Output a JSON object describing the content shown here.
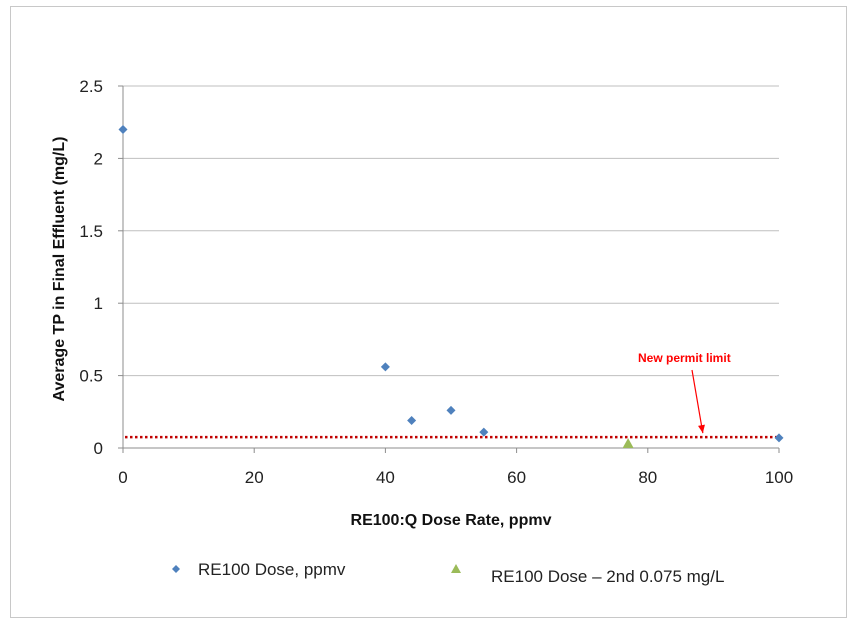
{
  "chart_data": {
    "type": "scatter",
    "title": "",
    "xlabel": "RE100:Q Dose Rate, ppmv",
    "ylabel": "Average TP in Final Effluent (mg/L)",
    "xlim": [
      0,
      100
    ],
    "ylim": [
      0,
      2.5
    ],
    "xticks": [
      0,
      20,
      40,
      60,
      80,
      100
    ],
    "yticks": [
      0,
      0.5,
      1,
      1.5,
      2,
      2.5
    ],
    "ytick_labels": [
      "0",
      "0.5",
      "1",
      "1.5",
      "2",
      "2.5"
    ],
    "grid": "horizontal",
    "legend_position": "bottom",
    "series": [
      {
        "name": "RE100 Dose, ppmv",
        "marker": "diamond",
        "color": "#4f81bd",
        "points": [
          {
            "x": 0,
            "y": 2.2
          },
          {
            "x": 40,
            "y": 0.56
          },
          {
            "x": 44,
            "y": 0.19
          },
          {
            "x": 50,
            "y": 0.26
          },
          {
            "x": 55,
            "y": 0.11
          },
          {
            "x": 100,
            "y": 0.07
          }
        ]
      },
      {
        "name": "RE100 Dose – 2nd 0.075 mg/L",
        "marker": "triangle",
        "color": "#9bbb59",
        "points": [
          {
            "x": 77,
            "y": 0.03
          }
        ]
      }
    ],
    "reference_line": {
      "y": 0.075,
      "style": "dotted",
      "color": "#c00000"
    },
    "annotation": {
      "text": "New permit limit",
      "color": "#ff0000",
      "arrow_to": {
        "x": 89,
        "y": 0.075
      }
    }
  }
}
